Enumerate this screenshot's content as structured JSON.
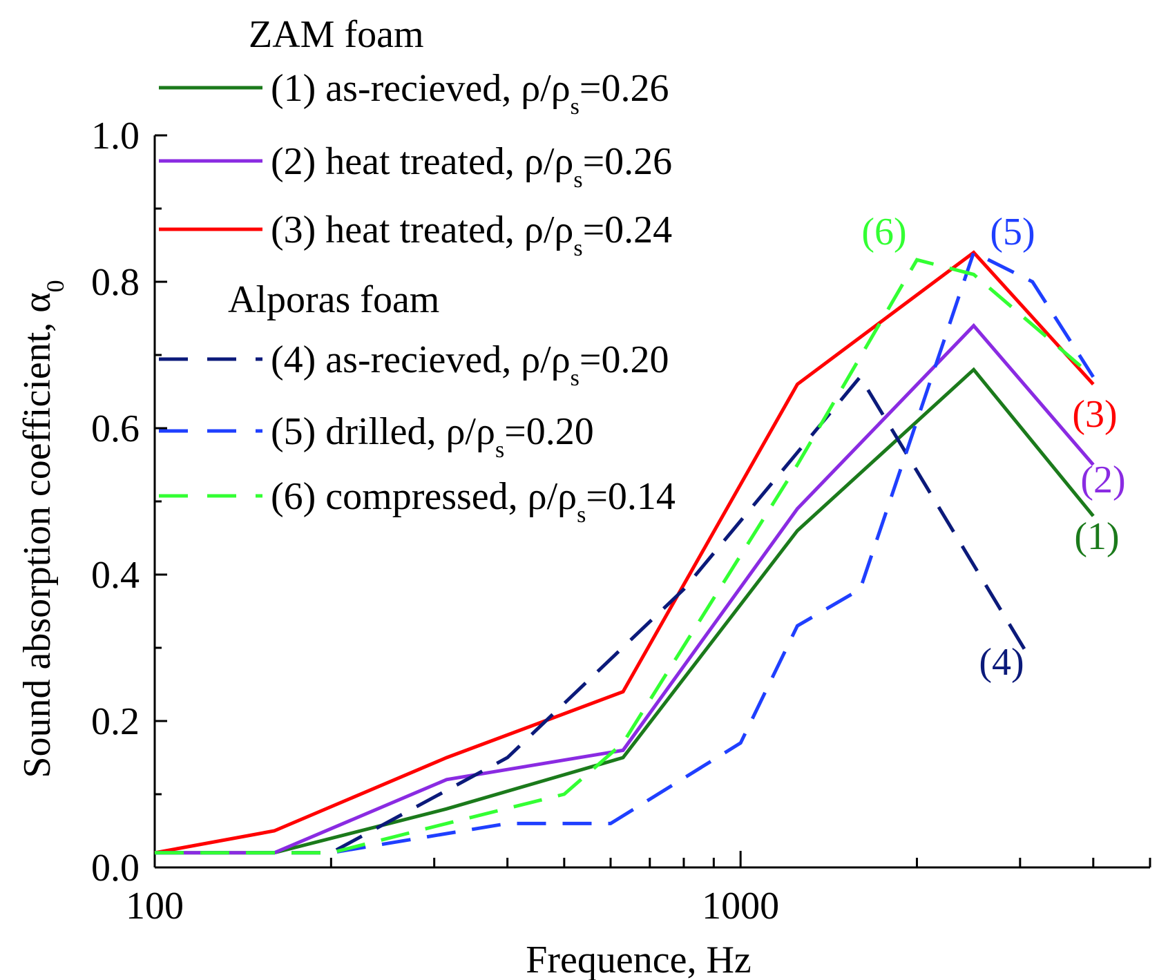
{
  "chart_data": {
    "type": "line",
    "xscale": "log",
    "xlim": [
      100,
      5000
    ],
    "ylim": [
      0.0,
      1.0
    ],
    "xlabel": "Frequence, Hz",
    "ylabel": "Sound absorption coefficient, α",
    "ylabel_sub": "0",
    "xticks": [
      100,
      1000
    ],
    "xtick_labels": [
      "100",
      "1000"
    ],
    "yticks": [
      0.0,
      0.2,
      0.4,
      0.6,
      0.8,
      1.0
    ],
    "ytick_labels": [
      "0.0",
      "0.2",
      "0.4",
      "0.6",
      "0.8",
      "1.0"
    ],
    "legend_groups": [
      {
        "title": "ZAM foam",
        "series_ids": [
          "s1",
          "s2",
          "s3"
        ]
      },
      {
        "title": "Alporas foam",
        "series_ids": [
          "s4",
          "s5",
          "s6"
        ]
      }
    ],
    "series": [
      {
        "id": "s1",
        "name": "(1) as-recieved, ρ/ρ",
        "sub": "s",
        "value_text": "=0.26",
        "tag": "(1)",
        "color": "#1b7a1b",
        "dash": "solid",
        "x": [
          100,
          160,
          315,
          630,
          1250,
          2500,
          4000
        ],
        "values": [
          0.02,
          0.02,
          0.08,
          0.15,
          0.46,
          0.68,
          0.48
        ]
      },
      {
        "id": "s2",
        "name": "(2) heat treated, ρ/ρ",
        "sub": "s",
        "value_text": "=0.26",
        "tag": "(2)",
        "color": "#8a2be2",
        "dash": "solid",
        "x": [
          100,
          160,
          315,
          630,
          1250,
          2500,
          4000
        ],
        "values": [
          0.02,
          0.02,
          0.12,
          0.16,
          0.49,
          0.74,
          0.55
        ]
      },
      {
        "id": "s3",
        "name": "(3) heat treated, ρ/ρ",
        "sub": "s",
        "value_text": "=0.24",
        "tag": "(3)",
        "color": "#ff0000",
        "dash": "solid",
        "x": [
          100,
          160,
          315,
          630,
          1250,
          2500,
          4000
        ],
        "values": [
          0.02,
          0.05,
          0.15,
          0.24,
          0.66,
          0.84,
          0.66
        ]
      },
      {
        "id": "s4",
        "name": "(4) as-recieved, ρ/ρ",
        "sub": "s",
        "value_text": "=0.20",
        "tag": "(4)",
        "color": "#0b1a7a",
        "dash": "dashed",
        "x": [
          100,
          200,
          400,
          800,
          1600,
          3150
        ],
        "values": [
          0.02,
          0.02,
          0.15,
          0.38,
          0.67,
          0.28
        ]
      },
      {
        "id": "s5",
        "name": "(5) drilled, ρ/ρ",
        "sub": "s",
        "value_text": "=0.20",
        "tag": "(5)",
        "color": "#1f3fff",
        "dash": "dashed",
        "x": [
          100,
          200,
          400,
          600,
          1000,
          1250,
          1600,
          2500,
          3150,
          4000
        ],
        "values": [
          0.02,
          0.02,
          0.06,
          0.06,
          0.17,
          0.33,
          0.38,
          0.84,
          0.8,
          0.67
        ]
      },
      {
        "id": "s6",
        "name": "(6) compressed, ρ/ρ",
        "sub": "s",
        "value_text": "=0.14",
        "tag": "(6)",
        "color": "#33ff33",
        "dash": "dashed",
        "x": [
          100,
          200,
          315,
          500,
          630,
          1250,
          2000,
          2500,
          4000
        ],
        "values": [
          0.02,
          0.02,
          0.06,
          0.1,
          0.17,
          0.55,
          0.83,
          0.81,
          0.67
        ]
      }
    ]
  }
}
